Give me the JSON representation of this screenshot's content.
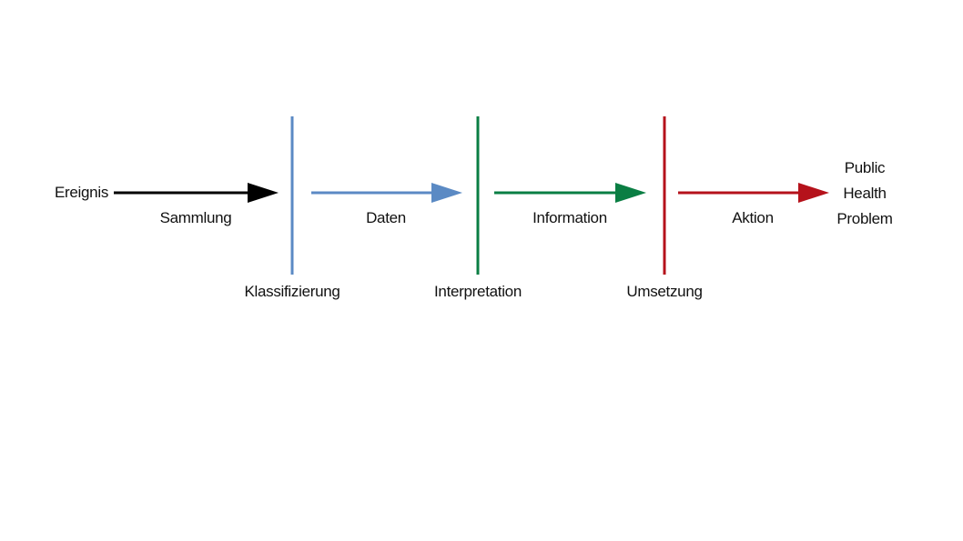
{
  "start_label": "Ereignis",
  "end_label_lines": [
    "Public",
    "Health",
    "Problem"
  ],
  "arrows": [
    {
      "label": "Sammlung",
      "color": "#000000"
    },
    {
      "label": "Daten",
      "color": "#5b8ac4"
    },
    {
      "label": "Information",
      "color": "#0a7e43"
    },
    {
      "label": "Aktion",
      "color": "#b5121b"
    }
  ],
  "barriers": [
    {
      "label": "Klassifizierung",
      "color": "#5b8ac4"
    },
    {
      "label": "Interpretation",
      "color": "#0a7e43"
    },
    {
      "label": "Umsetzung",
      "color": "#b5121b"
    }
  ]
}
